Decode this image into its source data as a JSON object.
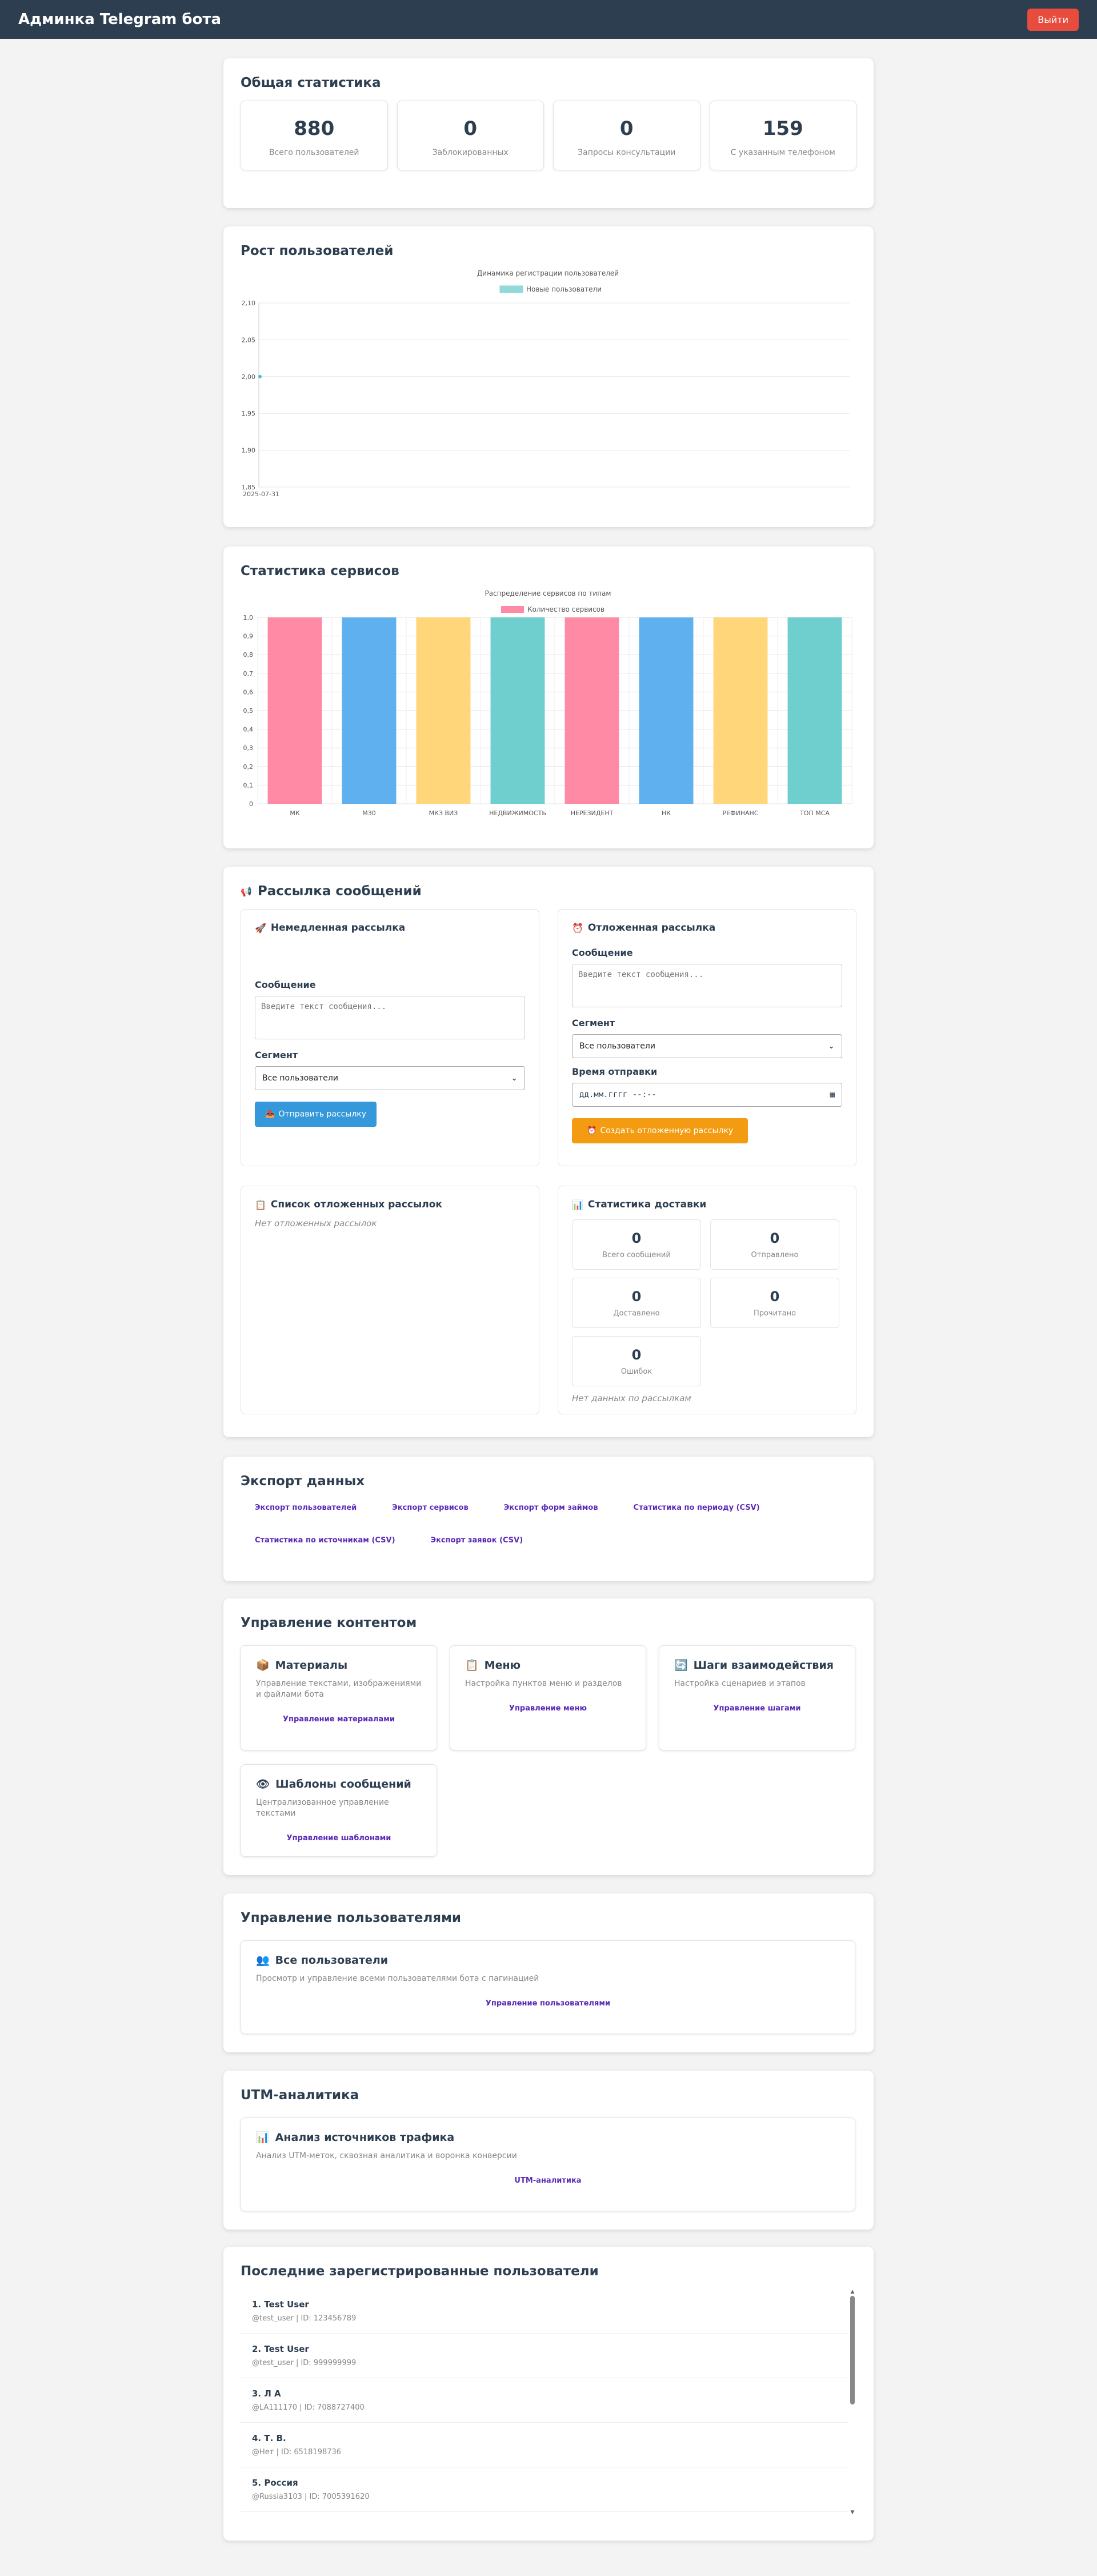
{
  "header": {
    "title": "Админка Telegram бота",
    "logout": "Выйти"
  },
  "stats": {
    "title": "Общая статистика",
    "cards": [
      {
        "value": "880",
        "label": "Всего пользователей"
      },
      {
        "value": "0",
        "label": "Заблокированных"
      },
      {
        "value": "0",
        "label": "Запросы консультации"
      },
      {
        "value": "159",
        "label": "С указанным телефоном"
      }
    ]
  },
  "growth": {
    "title": "Рост пользователей",
    "chart_data": {
      "type": "line",
      "title": "Динамика регистрации пользователей",
      "series": [
        {
          "name": "Новые пользователи",
          "color": "#4bc0c0",
          "values": [
            2.0
          ]
        }
      ],
      "x": [
        "2025-07-31"
      ],
      "ylim": [
        1.9,
        2.1
      ],
      "yticks": [
        "2,10",
        "2,05",
        "2,00",
        "1,95",
        "1,90",
        "1,85"
      ],
      "ytick_values": [
        2.1,
        2.05,
        2.0,
        1.95,
        1.9,
        1.85
      ],
      "legend": "top"
    }
  },
  "services": {
    "title": "Статистика сервисов",
    "chart_data": {
      "type": "bar",
      "title": "Распределение сервисов по типам",
      "categories": [
        "МК",
        "МЗ0",
        "МКЗ ВИЗ",
        "НЕДВИЖИМОСТЬ",
        "НЕРЕЗИДЕНТ",
        "НК",
        "РЕФИНАНС",
        "ТОП МСА"
      ],
      "series": [
        {
          "name": "Количество сервисов",
          "values": [
            1,
            1,
            1,
            1,
            1,
            1,
            1,
            1
          ]
        }
      ],
      "colors": [
        "#ff8aa5",
        "#5fb0ee",
        "#ffd67a",
        "#6fcfcf",
        "#ff8aa5",
        "#5fb0ee",
        "#ffd67a",
        "#6fcfcf"
      ],
      "ylim": [
        0,
        1
      ],
      "yticks": [
        "1,0",
        "0,9",
        "0,8",
        "0,7",
        "0,6",
        "0,5",
        "0,4",
        "0,3",
        "0,2",
        "0,1",
        "0"
      ],
      "legend": "top"
    }
  },
  "broadcast": {
    "title": "Рассылка сообщений",
    "immediate": {
      "title": "Немедленная рассылка",
      "message_label": "Сообщение",
      "message_placeholder": "Введите текст сообщения...",
      "segment_label": "Сегмент",
      "segment_value": "Все пользователи",
      "send": "Отправить рассылку"
    },
    "scheduled": {
      "title": "Отложенная рассылка",
      "message_label": "Сообщение",
      "message_placeholder": "Введите текст сообщения...",
      "segment_label": "Сегмент",
      "segment_value": "Все пользователи",
      "time_label": "Время отправки",
      "time_placeholder": "дд.мм.гггг --:--",
      "create": "Создать отложенную рассылку"
    },
    "list": {
      "title": "Список отложенных рассылок",
      "empty": "Нет отложенных рассылок"
    },
    "delivery": {
      "title": "Статистика доставки",
      "cards": [
        {
          "value": "0",
          "label": "Всего сообщений"
        },
        {
          "value": "0",
          "label": "Отправлено"
        },
        {
          "value": "0",
          "label": "Доставлено"
        },
        {
          "value": "0",
          "label": "Прочитано"
        },
        {
          "value": "0",
          "label": "Ошибок"
        }
      ],
      "empty": "Нет данных по рассылкам"
    }
  },
  "export": {
    "title": "Экспорт данных",
    "links": [
      "Экспорт пользователей",
      "Экспорт сервисов",
      "Экспорт форм займов",
      "Статистика по периоду (CSV)",
      "Статистика по источникам (CSV)",
      "Экспорт заявок (CSV)"
    ]
  },
  "content": {
    "title": "Управление контентом",
    "cards": [
      {
        "title": "Материалы",
        "desc": "Управление текстами, изображениями и файлами бота",
        "link": "Управление материалами"
      },
      {
        "title": "Меню",
        "desc": "Настройка пунктов меню и разделов",
        "link": "Управление меню"
      },
      {
        "title": "Шаги взаимодействия",
        "desc": "Настройка сценариев и этапов",
        "link": "Управление шагами"
      },
      {
        "title": "Шаблоны сообщений",
        "desc": "Централизованное управление текстами",
        "link": "Управление шаблонами"
      }
    ]
  },
  "users_mgmt": {
    "title": "Управление пользователями",
    "card": {
      "title": "Все пользователи",
      "desc": "Просмотр и управление всеми пользователями бота с пагинацией",
      "link": "Управление пользователями"
    }
  },
  "utm": {
    "title": "UTM-аналитика",
    "card": {
      "title": "Анализ источников трафика",
      "desc": "Анализ UTM-меток, сквозная аналитика и воронка конверсии",
      "link": "UTM-аналитика"
    }
  },
  "recent": {
    "title": "Последние зарегистрированные пользователи",
    "users": [
      {
        "name": "1. Test User",
        "meta": "@test_user | ID: 123456789"
      },
      {
        "name": "2. Test User",
        "meta": "@test_user | ID: 999999999"
      },
      {
        "name": "3. Л А",
        "meta": "@LA111170 | ID: 7088727400"
      },
      {
        "name": "4. Т. В.",
        "meta": "@Нет | ID: 6518198736"
      },
      {
        "name": "5. Россия",
        "meta": "@Russia3103 | ID: 7005391620"
      }
    ]
  }
}
